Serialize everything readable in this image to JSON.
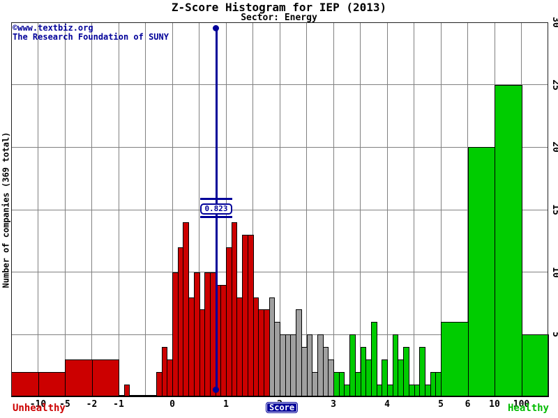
{
  "title": "Z-Score Histogram for IEP (2013)",
  "subtitle": "Sector: Energy",
  "watermark": {
    "line1": "©www.textbiz.org",
    "line2": "The Research Foundation of SUNY"
  },
  "axes": {
    "y_label": "Number of companies (369 total)",
    "y_ticks": [
      5,
      10,
      15,
      20,
      25,
      30
    ],
    "y_max": 30,
    "x_label": "Score",
    "x_tick_labels": [
      "-10",
      "-5",
      "-2",
      "-1",
      "0",
      "1",
      "2",
      "3",
      "4",
      "5",
      "6",
      "10",
      "100"
    ],
    "left_caption": "Unhealthy",
    "right_caption": "Healthy"
  },
  "marker": {
    "value": 0.823,
    "label": "0.823"
  },
  "colors": {
    "unhealthy": "#cc0000",
    "grey_zone": "#a0a0a0",
    "healthy": "#00cc00",
    "marker": "#000099",
    "grid": "#808080"
  },
  "chart_data": {
    "type": "bar",
    "title": "Z-Score Histogram for IEP (2013)",
    "xlabel": "Score",
    "ylabel": "Number of companies (369 total)",
    "ylim": [
      0,
      30
    ],
    "total_companies": 369,
    "zones": {
      "grey_from": 1.8,
      "healthy_from": 3.0
    },
    "wide_bins": [
      {
        "label": "< -10",
        "count": 2,
        "zone": "unhealthy"
      },
      {
        "label": "-10 to -5",
        "count": 2,
        "zone": "unhealthy"
      },
      {
        "label": "-5 to -2",
        "count": 3,
        "zone": "unhealthy"
      },
      {
        "label": "-2 to -1",
        "count": 3,
        "zone": "unhealthy"
      },
      {
        "label": "5 to 6",
        "count": 6,
        "zone": "healthy"
      },
      {
        "label": "6 to 10",
        "count": 20,
        "zone": "healthy"
      },
      {
        "label": "10 to 100",
        "count": 25,
        "zone": "healthy"
      },
      {
        "label": "> 100",
        "count": 5,
        "zone": "healthy"
      }
    ],
    "fine_bins": {
      "start": -1.0,
      "step": 0.1,
      "counts": [
        0,
        1,
        0,
        0,
        0,
        0,
        0,
        2,
        4,
        3,
        10,
        12,
        14,
        8,
        10,
        7,
        10,
        10,
        9,
        9,
        12,
        14,
        8,
        13,
        13,
        8,
        7,
        7,
        8,
        6,
        5,
        5,
        5,
        7,
        4,
        5,
        2,
        5,
        4,
        3,
        2,
        2,
        1,
        5,
        2,
        4,
        3,
        6,
        1,
        3,
        1,
        5,
        3,
        4,
        1,
        1,
        4,
        1,
        2,
        2
      ]
    }
  }
}
